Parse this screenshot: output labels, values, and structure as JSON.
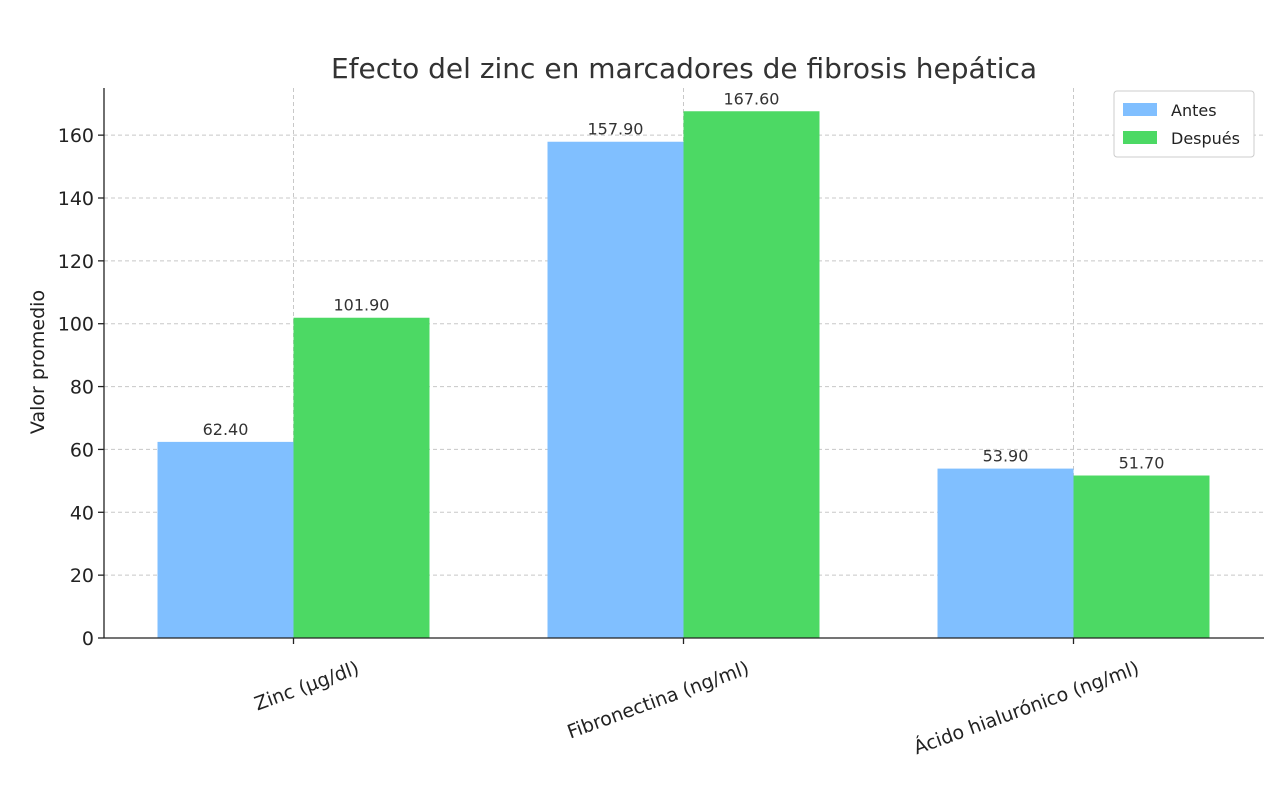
{
  "chart_data": {
    "type": "bar",
    "title": "Efecto del zinc en marcadores de fibrosis hepática",
    "xlabel": "",
    "ylabel": "Valor promedio",
    "categories": [
      "Zinc (µg/dl)",
      "Fibronectina (ng/ml)",
      "Ácido hialurónico (ng/ml)"
    ],
    "series": [
      {
        "name": "Antes",
        "values": [
          62.4,
          157.9,
          53.9
        ],
        "labels": [
          "62.40",
          "157.90",
          "53.90"
        ],
        "color": "#80BFFF"
      },
      {
        "name": "Después",
        "values": [
          101.9,
          167.6,
          51.7
        ],
        "labels": [
          "101.90",
          "167.60",
          "51.70"
        ],
        "color": "#4CD964"
      }
    ],
    "ylim": [
      0,
      175
    ],
    "yticks": [
      "0",
      "20",
      "40",
      "60",
      "80",
      "100",
      "120",
      "140",
      "160"
    ],
    "grid": true,
    "legend_position": "top-right"
  }
}
